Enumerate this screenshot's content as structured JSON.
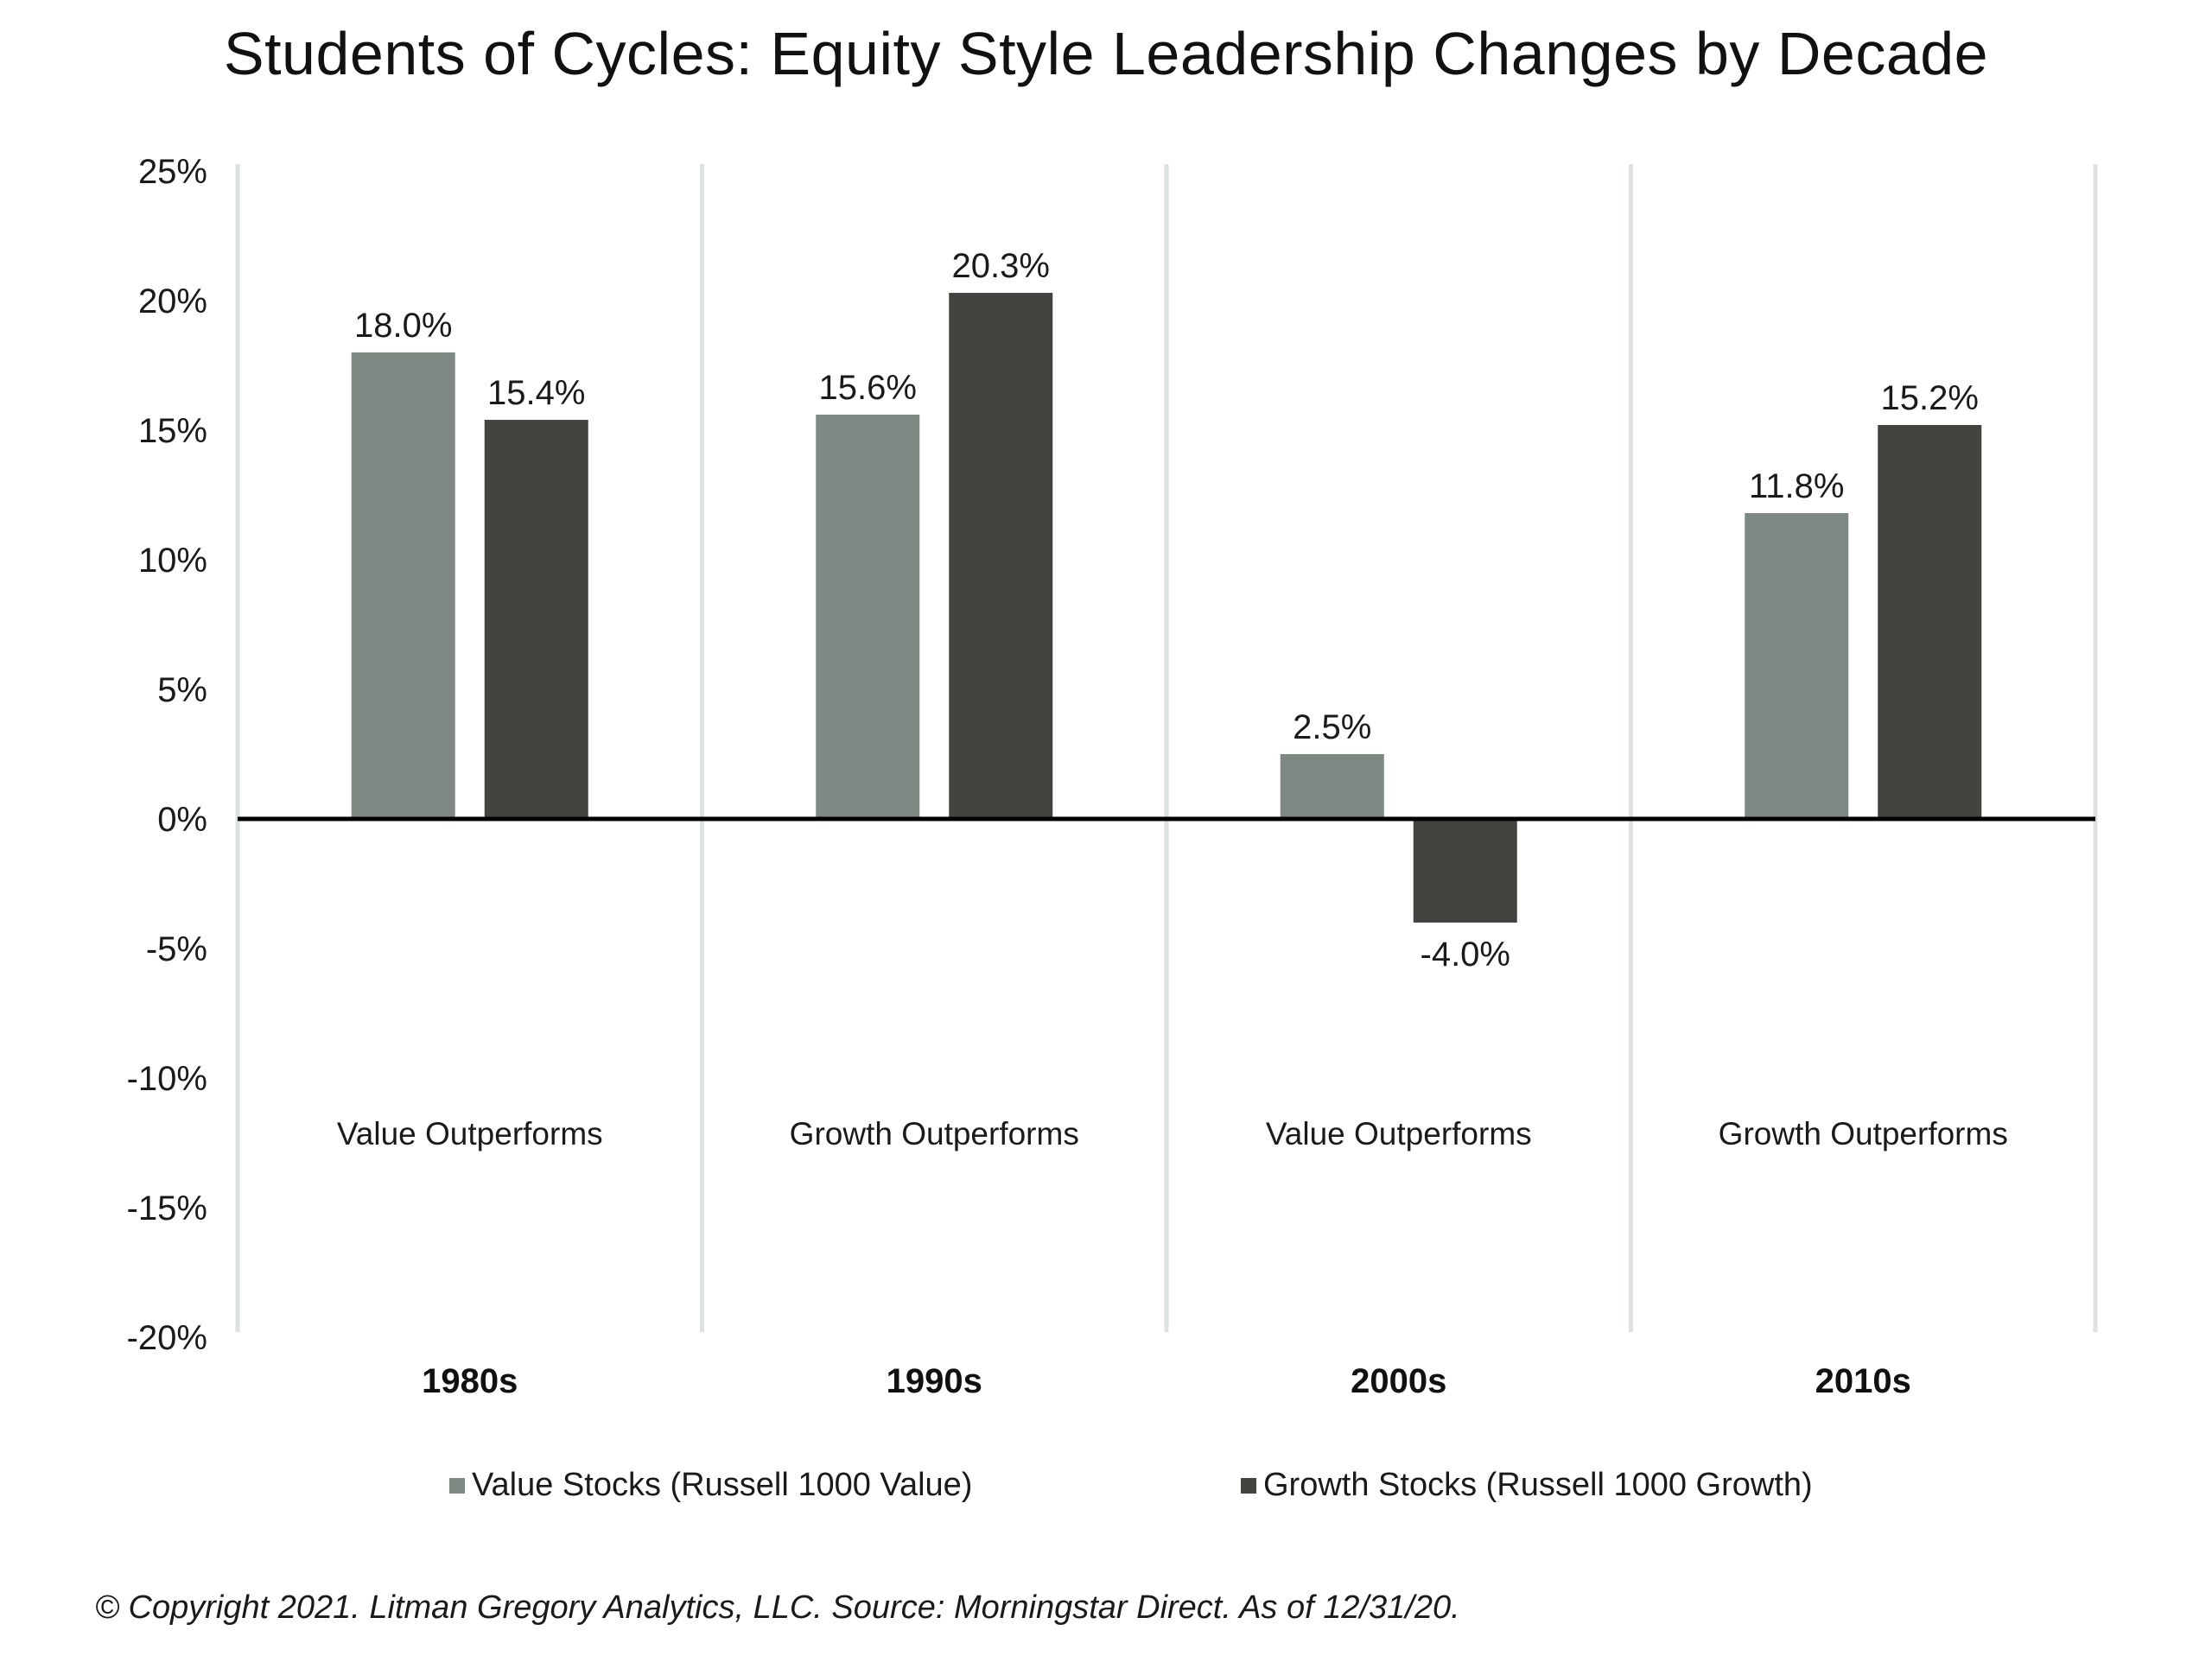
{
  "title": "Students of Cycles: Equity Style Leadership Changes by Decade",
  "footer": "© Copyright 2021. Litman Gregory Analytics, LLC. Source: Morningstar Direct. As of 12/31/20.",
  "colors": {
    "value": "#7f8984",
    "growth": "#434340",
    "divider": "#dde2e1",
    "zero_line": "#000000"
  },
  "chart_data": {
    "type": "bar",
    "title": "Students of Cycles: Equity Style Leadership Changes by Decade",
    "categories": [
      "1980s",
      "1990s",
      "2000s",
      "2010s"
    ],
    "annotations": [
      "Value Outperforms",
      "Growth Outperforms",
      "Value Outperforms",
      "Growth Outperforms"
    ],
    "series": [
      {
        "name": "Value Stocks (Russell 1000 Value)",
        "values": [
          18.0,
          15.6,
          2.5,
          11.8
        ],
        "labels": [
          "18.0%",
          "15.6%",
          "2.5%",
          "11.8%"
        ]
      },
      {
        "name": "Growth Stocks (Russell 1000 Growth)",
        "values": [
          15.4,
          20.3,
          -4.0,
          15.2
        ],
        "labels": [
          "15.4%",
          "20.3%",
          "-4.0%",
          "15.2%"
        ]
      }
    ],
    "ylim": [
      -20,
      25
    ],
    "yticks": [
      25,
      20,
      15,
      10,
      5,
      0,
      -5,
      -10,
      -15,
      -20
    ],
    "ytick_labels": [
      "25%",
      "20%",
      "15%",
      "10%",
      "5%",
      "0%",
      "-5%",
      "-10%",
      "-15%",
      "-20%"
    ],
    "xlabel": "",
    "ylabel": "",
    "grid": false,
    "legend": "bottom"
  }
}
